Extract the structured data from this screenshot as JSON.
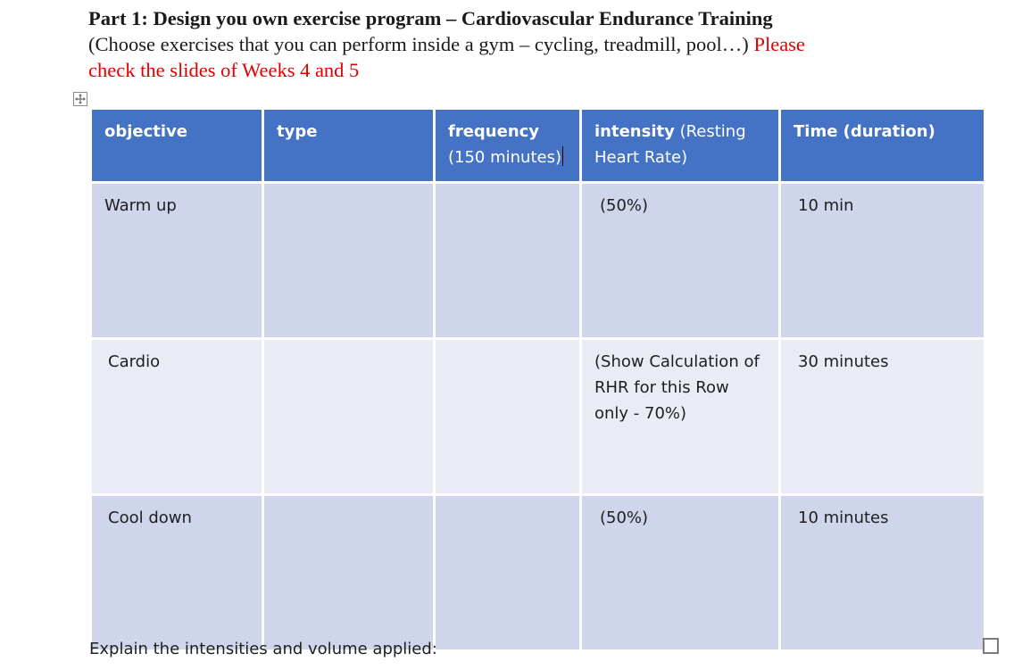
{
  "heading": {
    "title": "Part 1: Design you own exercise program – Cardiovascular Endurance Training",
    "subtitle": "(Choose exercises that you can perform inside a gym – cycling, treadmill, pool…)",
    "note_part1": "Please",
    "note_part2": "check the slides of Weeks 4 and 5"
  },
  "table": {
    "headers": {
      "objective": "objective",
      "type": "type",
      "frequency_bold": "frequency",
      "frequency_rest": " (150 minutes)",
      "intensity_bold": "intensity",
      "intensity_rest": " (Resting Heart Rate)",
      "time": "Time (duration)"
    },
    "rows": [
      {
        "objective": "Warm up",
        "type": "",
        "frequency": "",
        "intensity": "(50%)",
        "time": "10 min"
      },
      {
        "objective": "Cardio",
        "type": "",
        "frequency": "",
        "intensity": "(Show Calculation of RHR for this Row only - 70%)",
        "time": "30 minutes"
      },
      {
        "objective": "Cool down",
        "type": "",
        "frequency": "",
        "intensity": "(50%)",
        "time": "10 minutes"
      }
    ]
  },
  "explain_label": "Explain the intensities and volume applied:",
  "colors": {
    "header_bg": "#4472c4",
    "row_dark": "#cfd5ea",
    "row_light": "#e9ebf5",
    "note_red": "#e00000"
  }
}
